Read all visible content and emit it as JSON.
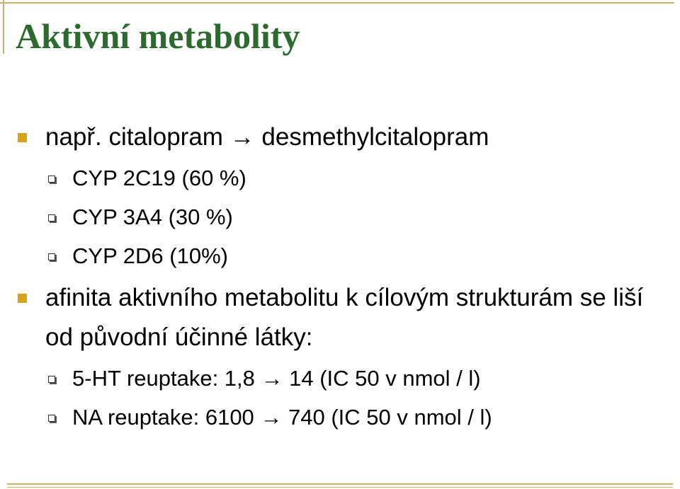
{
  "title": "Aktivní metabolity",
  "items": [
    {
      "text": "např. citalopram → desmethylcitalopram",
      "subitems": [
        "CYP 2C19 (60 %)",
        "CYP 3A4 (30 %)",
        "CYP 2D6 (10%)"
      ]
    },
    {
      "text": "afinita aktivního metabolitu k cílovým strukturám se liší od původní účinné látky:",
      "subitems": [
        "5-HT reuptake: 1,8 → 14 (IC 50 v nmol / l)",
        "NA reuptake: 6100 → 740 (IC 50 v nmol / l)"
      ]
    }
  ]
}
